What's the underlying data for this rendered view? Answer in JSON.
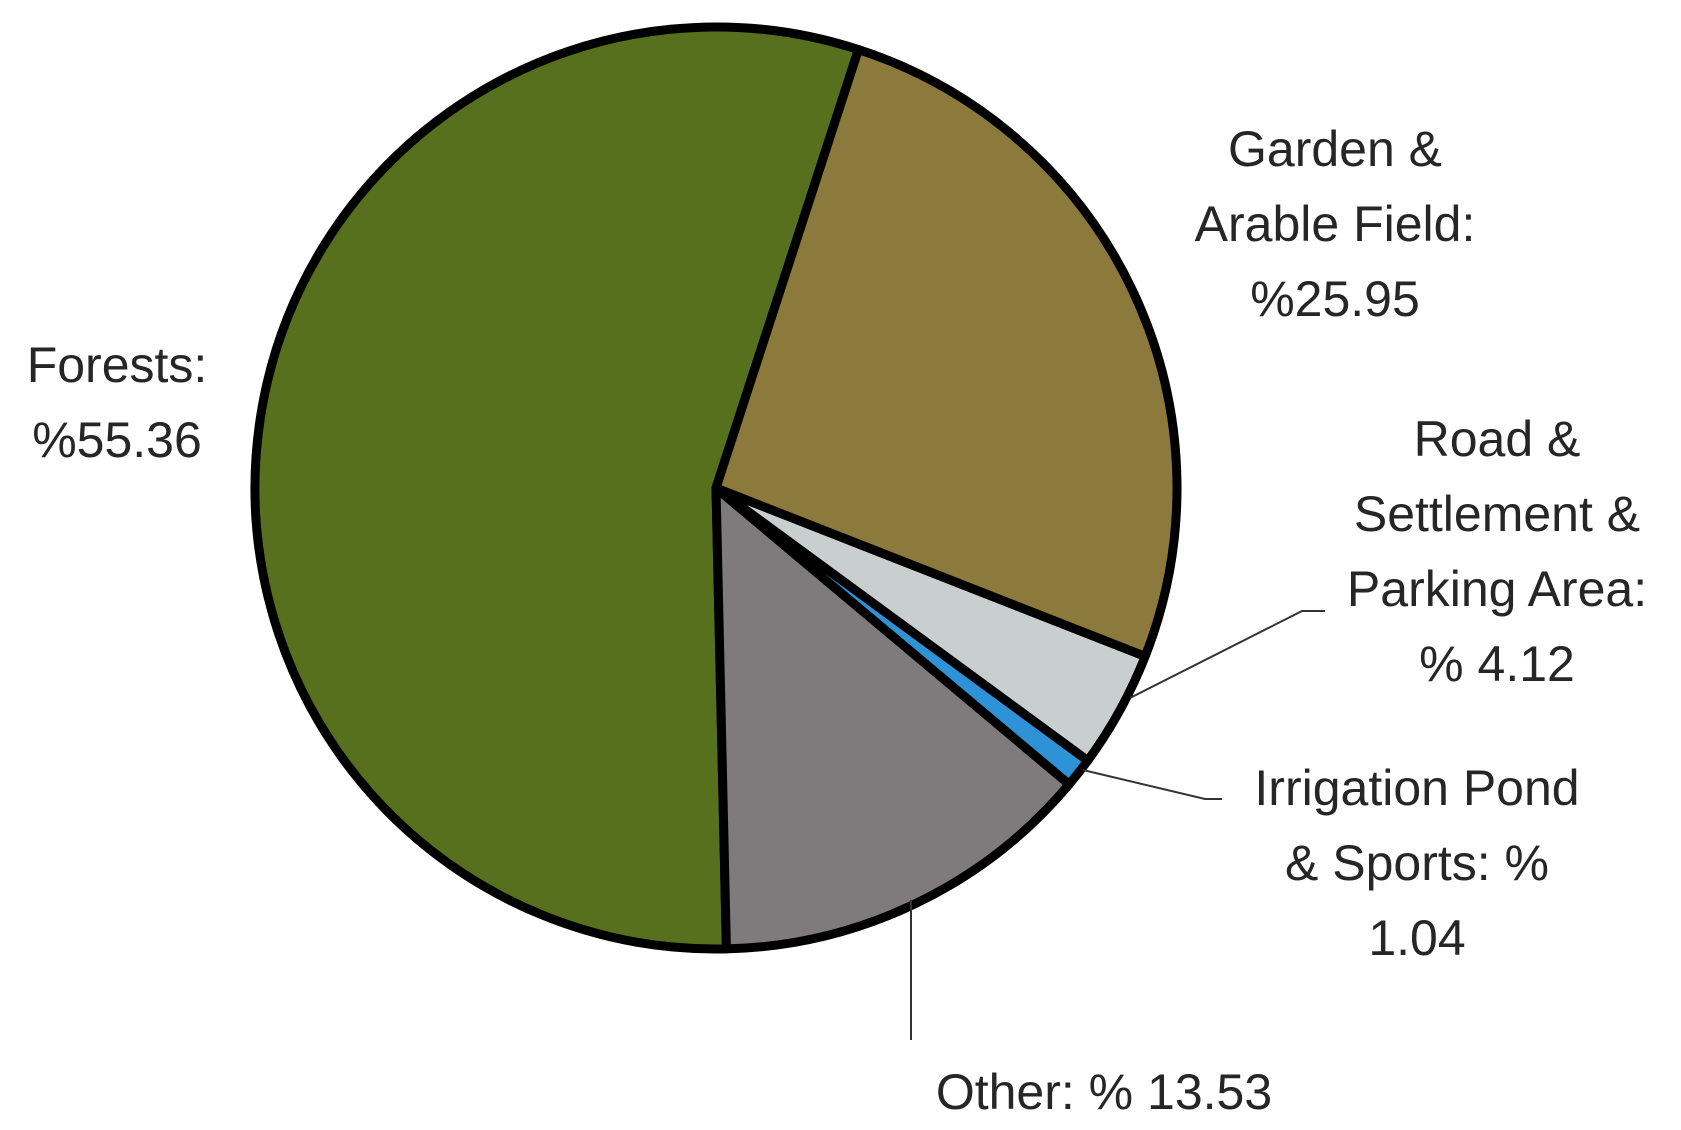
{
  "chart_data": {
    "type": "pie",
    "labels": [
      "Garden &\nArable Field:\n%25.95",
      "Road &\nSettlement &\nParking Area:\n% 4.12",
      "Irrigation Pond\n& Sports: %\n1.04",
      "Other: % 13.53",
      "Forests:\n%55.36"
    ],
    "values": [
      25.95,
      4.12,
      1.04,
      13.53,
      55.36
    ],
    "colors": [
      "#8c7a3c",
      "#c9cfcf",
      "#2e92d6",
      "#7f7b7d",
      "#56701e"
    ]
  }
}
